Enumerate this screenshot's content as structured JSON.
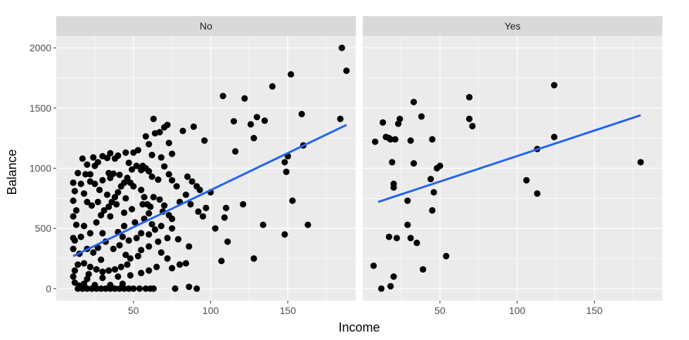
{
  "chart_data": {
    "type": "scatter",
    "xlabel": "Income",
    "ylabel": "Balance",
    "xlim": [
      0,
      194
    ],
    "ylim": [
      -100,
      2100
    ],
    "x_ticks": [
      50,
      100,
      150
    ],
    "y_ticks": [
      0,
      500,
      1000,
      1500,
      2000
    ],
    "grid": true,
    "colors": {
      "points": "#000000",
      "fit_line": "#2563eb",
      "panel_bg": "#ebebeb",
      "strip_bg": "#d9d9d9",
      "grid": "#ffffff"
    },
    "panels": [
      {
        "label": "No",
        "fit_line": [
          [
            11,
            270
          ],
          [
            188,
            1360
          ]
        ],
        "points": [
          [
            185,
            2000
          ],
          [
            188,
            1810
          ],
          [
            152,
            1780
          ],
          [
            140,
            1680
          ],
          [
            108,
            1600
          ],
          [
            122,
            1580
          ],
          [
            159,
            1450
          ],
          [
            184,
            1410
          ],
          [
            130,
            1425
          ],
          [
            135,
            1395
          ],
          [
            115,
            1390
          ],
          [
            126,
            1365
          ],
          [
            128,
            1250
          ],
          [
            116,
            1140
          ],
          [
            96,
            1230
          ],
          [
            160,
            1190
          ],
          [
            150,
            1100
          ],
          [
            148,
            1050
          ],
          [
            149,
            970
          ],
          [
            89,
            1345
          ],
          [
            82,
            1310
          ],
          [
            63,
            1410
          ],
          [
            70,
            1340
          ],
          [
            72,
            1360
          ],
          [
            64,
            1290
          ],
          [
            67,
            1300
          ],
          [
            58,
            1265
          ],
          [
            60,
            1200
          ],
          [
            53,
            1150
          ],
          [
            50,
            1130
          ],
          [
            73,
            1210
          ],
          [
            75,
            1120
          ],
          [
            62,
            1110
          ],
          [
            68,
            1090
          ],
          [
            45,
            1130
          ],
          [
            35,
            1125
          ],
          [
            40,
            1105
          ],
          [
            30,
            1100
          ],
          [
            17,
            1080
          ],
          [
            24,
            1090
          ],
          [
            33,
            1085
          ],
          [
            38,
            1080
          ],
          [
            27,
            1050
          ],
          [
            20,
            1030
          ],
          [
            25,
            1020
          ],
          [
            14,
            960
          ],
          [
            19,
            950
          ],
          [
            22,
            950
          ],
          [
            34,
            960
          ],
          [
            37,
            955
          ],
          [
            41,
            945
          ],
          [
            49,
            990
          ],
          [
            55,
            985
          ],
          [
            60,
            975
          ],
          [
            47,
            1045
          ],
          [
            52,
            1020
          ],
          [
            58,
            1000
          ],
          [
            70,
            1015
          ],
          [
            73,
            950
          ],
          [
            66,
            905
          ],
          [
            75,
            900
          ],
          [
            85,
            930
          ],
          [
            88,
            890
          ],
          [
            91,
            850
          ],
          [
            93,
            820
          ],
          [
            100,
            800
          ],
          [
            84,
            780
          ],
          [
            78,
            850
          ],
          [
            87,
            700
          ],
          [
            110,
            670
          ],
          [
            121,
            700
          ],
          [
            109,
            590
          ],
          [
            153,
            730
          ],
          [
            97,
            670
          ],
          [
            80,
            720
          ],
          [
            92,
            640
          ],
          [
            69,
            640
          ],
          [
            61,
            680
          ],
          [
            56,
            700
          ],
          [
            75,
            580
          ],
          [
            68,
            520
          ],
          [
            57,
            580
          ],
          [
            51,
            550
          ],
          [
            44,
            520
          ],
          [
            40,
            470
          ],
          [
            30,
            460
          ],
          [
            22,
            460
          ],
          [
            16,
            430
          ],
          [
            12,
            400
          ],
          [
            18,
            520
          ],
          [
            26,
            550
          ],
          [
            35,
            600
          ],
          [
            44,
            630
          ],
          [
            49,
            660
          ],
          [
            60,
            625
          ],
          [
            62,
            535
          ],
          [
            64,
            490
          ],
          [
            60,
            450
          ],
          [
            55,
            460
          ],
          [
            52,
            420
          ],
          [
            47,
            400
          ],
          [
            43,
            430
          ],
          [
            41,
            360
          ],
          [
            37,
            330
          ],
          [
            32,
            390
          ],
          [
            27,
            340
          ],
          [
            24,
            300
          ],
          [
            20,
            330
          ],
          [
            15,
            290
          ],
          [
            11,
            330
          ],
          [
            11,
            420
          ],
          [
            13,
            530
          ],
          [
            11,
            600
          ],
          [
            13,
            650
          ],
          [
            11,
            730
          ],
          [
            12,
            810
          ],
          [
            11,
            880
          ],
          [
            16,
            870
          ],
          [
            18,
            790
          ],
          [
            20,
            720
          ],
          [
            23,
            690
          ],
          [
            27,
            720
          ],
          [
            29,
            610
          ],
          [
            31,
            650
          ],
          [
            34,
            680
          ],
          [
            36,
            720
          ],
          [
            38,
            760
          ],
          [
            40,
            800
          ],
          [
            42,
            850
          ],
          [
            44,
            880
          ],
          [
            46,
            920
          ],
          [
            48,
            880
          ],
          [
            50,
            850
          ],
          [
            45,
            750
          ],
          [
            39,
            700
          ],
          [
            33,
            780
          ],
          [
            28,
            820
          ],
          [
            25,
            870
          ],
          [
            22,
            890
          ],
          [
            30,
            900
          ],
          [
            35,
            920
          ],
          [
            55,
            820
          ],
          [
            57,
            760
          ],
          [
            59,
            700
          ],
          [
            63,
            760
          ],
          [
            67,
            740
          ],
          [
            70,
            690
          ],
          [
            73,
            610
          ],
          [
            75,
            500
          ],
          [
            72,
            420
          ],
          [
            66,
            390
          ],
          [
            60,
            350
          ],
          [
            55,
            320
          ],
          [
            53,
            270
          ],
          [
            48,
            250
          ],
          [
            46,
            200
          ],
          [
            42,
            180
          ],
          [
            38,
            160
          ],
          [
            34,
            150
          ],
          [
            30,
            140
          ],
          [
            26,
            160
          ],
          [
            22,
            180
          ],
          [
            18,
            210
          ],
          [
            14,
            200
          ],
          [
            12,
            150
          ],
          [
            11,
            100
          ],
          [
            12,
            50
          ],
          [
            14,
            0
          ],
          [
            17,
            0
          ],
          [
            20,
            0
          ],
          [
            23,
            0
          ],
          [
            26,
            0
          ],
          [
            29,
            0
          ],
          [
            32,
            0
          ],
          [
            35,
            0
          ],
          [
            38,
            0
          ],
          [
            41,
            0
          ],
          [
            44,
            0
          ],
          [
            47,
            0
          ],
          [
            50,
            0
          ],
          [
            54,
            0
          ],
          [
            58,
            0
          ],
          [
            61,
            0
          ],
          [
            63,
            0
          ],
          [
            15,
            25
          ],
          [
            25,
            30
          ],
          [
            35,
            30
          ],
          [
            43,
            40
          ],
          [
            20,
            80
          ],
          [
            30,
            90
          ],
          [
            40,
            100
          ],
          [
            48,
            110
          ],
          [
            55,
            130
          ],
          [
            60,
            150
          ],
          [
            65,
            180
          ],
          [
            75,
            170
          ],
          [
            80,
            200
          ],
          [
            84,
            210
          ],
          [
            68,
            300
          ],
          [
            72,
            250
          ],
          [
            79,
            410
          ],
          [
            86,
            350
          ],
          [
            95,
            600
          ],
          [
            103,
            500
          ],
          [
            111,
            390
          ],
          [
            107,
            230
          ],
          [
            128,
            250
          ],
          [
            134,
            530
          ],
          [
            148,
            450
          ],
          [
            163,
            530
          ],
          [
            77,
            0
          ],
          [
            86,
            15
          ],
          [
            91,
            0
          ],
          [
            56,
            1020
          ],
          [
            62,
            930
          ],
          [
            45,
            280
          ],
          [
            29,
            240
          ],
          [
            21,
            120
          ],
          [
            18,
            40
          ]
        ]
      },
      {
        "label": "Yes",
        "fit_line": [
          [
            10,
            720
          ],
          [
            180,
            1440
          ]
        ],
        "points": [
          [
            124,
            1690
          ],
          [
            69,
            1590
          ],
          [
            33,
            1550
          ],
          [
            69,
            1410
          ],
          [
            24,
            1410
          ],
          [
            23,
            1370
          ],
          [
            13,
            1380
          ],
          [
            15,
            1260
          ],
          [
            31,
            1230
          ],
          [
            18,
            1240
          ],
          [
            17,
            1250
          ],
          [
            21,
            1240
          ],
          [
            8,
            1220
          ],
          [
            45,
            1240
          ],
          [
            38,
            1430
          ],
          [
            19,
            1050
          ],
          [
            33,
            1040
          ],
          [
            48,
            1000
          ],
          [
            50,
            1020
          ],
          [
            20,
            870
          ],
          [
            20,
            840
          ],
          [
            29,
            730
          ],
          [
            46,
            800
          ],
          [
            71,
            1350
          ],
          [
            113,
            1160
          ],
          [
            124,
            1260
          ],
          [
            180,
            1050
          ],
          [
            106,
            900
          ],
          [
            113,
            790
          ],
          [
            29,
            530
          ],
          [
            31,
            420
          ],
          [
            17,
            430
          ],
          [
            22,
            420
          ],
          [
            35,
            380
          ],
          [
            54,
            270
          ],
          [
            39,
            160
          ],
          [
            7,
            190
          ],
          [
            20,
            100
          ],
          [
            12,
            0
          ],
          [
            18,
            20
          ],
          [
            45,
            650
          ],
          [
            44,
            910
          ]
        ]
      }
    ]
  }
}
